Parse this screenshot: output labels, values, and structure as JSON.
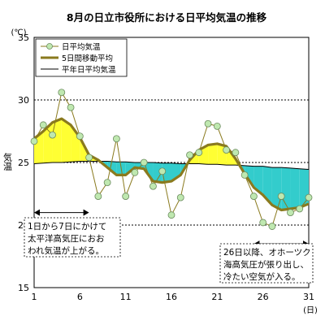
{
  "chart_data": {
    "type": "line",
    "title": "8月の日立市役所における日平均気温の推移",
    "ylabel": "気温",
    "y_unit": "(℃)",
    "x_unit": "(日)",
    "ylim": [
      15,
      35
    ],
    "xlim": [
      1,
      31
    ],
    "y_ticks": [
      15,
      20,
      25,
      30,
      35
    ],
    "x_ticks": [
      1,
      6,
      11,
      16,
      21,
      26,
      31
    ],
    "y_gridlines": [
      20,
      25,
      30
    ],
    "x": [
      1,
      2,
      3,
      4,
      5,
      6,
      7,
      8,
      9,
      10,
      11,
      12,
      13,
      14,
      15,
      16,
      17,
      18,
      19,
      20,
      21,
      22,
      23,
      24,
      25,
      26,
      27,
      28,
      29,
      30,
      31
    ],
    "series": [
      {
        "name": "日平均気温",
        "style": "thin line with circle markers",
        "color": "#8a7a1e",
        "marker_color": "#bfe8b0",
        "values": [
          26.7,
          28.0,
          27.2,
          30.6,
          29.4,
          27.1,
          25.4,
          22.3,
          23.4,
          26.9,
          22.3,
          24.2,
          25.0,
          23.1,
          24.3,
          20.8,
          22.2,
          25.6,
          25.8,
          28.1,
          27.9,
          26.0,
          25.8,
          24.0,
          22.3,
          20.2,
          19.9,
          22.3,
          21.0,
          21.3,
          22.2
        ]
      },
      {
        "name": "5日間移動平均",
        "style": "thick line",
        "color": "#8a7a1e",
        "values": [
          26.9,
          27.5,
          28.2,
          28.5,
          28.0,
          27.0,
          25.6,
          25.2,
          24.6,
          24.0,
          24.0,
          24.6,
          24.5,
          23.5,
          23.4,
          23.5,
          24.0,
          25.2,
          26.0,
          26.4,
          26.5,
          26.3,
          25.3,
          24.1,
          23.0,
          22.4,
          21.6,
          21.2,
          21.3,
          21.4,
          21.7
        ]
      },
      {
        "name": "平年日平均気温",
        "style": "thin black line",
        "color": "#000000",
        "values": [
          24.9,
          24.95,
          25.0,
          25.0,
          25.05,
          25.1,
          25.1,
          25.1,
          25.1,
          25.05,
          25.05,
          25.0,
          25.0,
          25.0,
          24.95,
          24.95,
          24.9,
          24.9,
          24.9,
          24.85,
          24.85,
          24.8,
          24.8,
          24.75,
          24.7,
          24.7,
          24.6,
          24.6,
          24.55,
          24.5,
          24.45
        ]
      }
    ],
    "fill_above_normal_color": "#ffff33",
    "fill_below_normal_color": "#33cccc",
    "annotations": [
      {
        "lines": [
          "1日から7日にかけて",
          "太平洋高気圧におお",
          "われ気温が上がる。"
        ],
        "arrow_from_day": 1,
        "arrow_to_day": 7,
        "arrow_temp": 21.0
      },
      {
        "lines": [
          "26日以降、オホーツク",
          "海高気圧が張り出し、",
          "冷たい空気が入る。"
        ],
        "arrow_from_day": 25,
        "arrow_to_day": 31,
        "arrow_temp": 18.5
      }
    ],
    "legend_position": "top-left",
    "grid": "dashed horizontal at 20, 25, 30"
  }
}
